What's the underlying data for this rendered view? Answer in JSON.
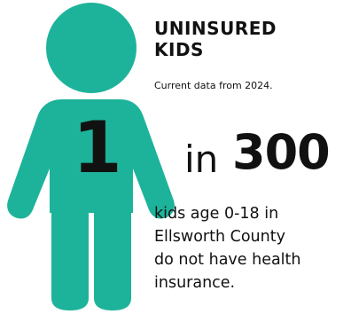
{
  "colors": {
    "figure": "#1db39a",
    "text": "#111111"
  },
  "icon": "child-figure-icon",
  "heading": {
    "line1": "UNINSURED",
    "line2": "KIDS",
    "subtitle": "Current data from 2024."
  },
  "stat": {
    "numerator": "1",
    "connector": "in",
    "denominator": "300"
  },
  "description": {
    "line1": "kids age 0-18 in",
    "line2": "Ellsworth County",
    "line3": "do not have health",
    "line4": "insurance."
  }
}
